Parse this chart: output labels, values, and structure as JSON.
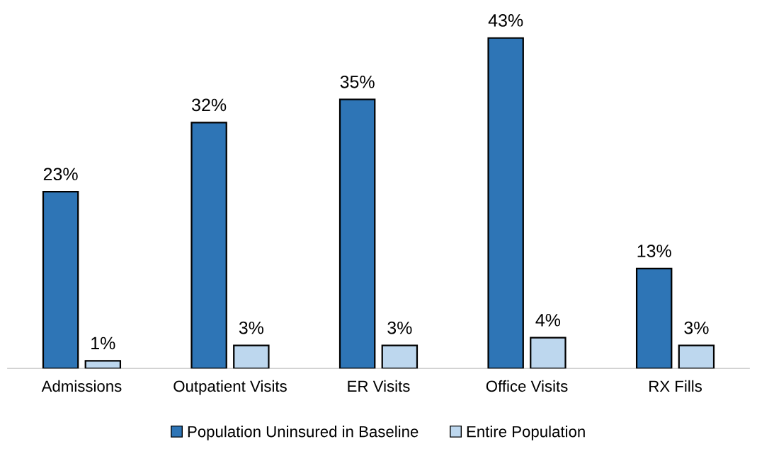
{
  "chart_data": {
    "type": "bar",
    "categories": [
      "Admissions",
      "Outpatient Visits",
      "ER Visits",
      "Office Visits",
      "RX Fills"
    ],
    "series": [
      {
        "name": "Population Uninsured in Baseline",
        "color": "#2e75b6",
        "values": [
          23,
          32,
          35,
          43,
          13
        ],
        "value_labels": [
          "23%",
          "32%",
          "35%",
          "43%",
          "13%"
        ]
      },
      {
        "name": "Entire Population",
        "color": "#bdd7ee",
        "values": [
          1,
          3,
          3,
          4,
          3
        ],
        "value_labels": [
          "1%",
          "3%",
          "3%",
          "4%",
          "3%"
        ]
      }
    ],
    "legend": "bottom",
    "grid": false
  }
}
